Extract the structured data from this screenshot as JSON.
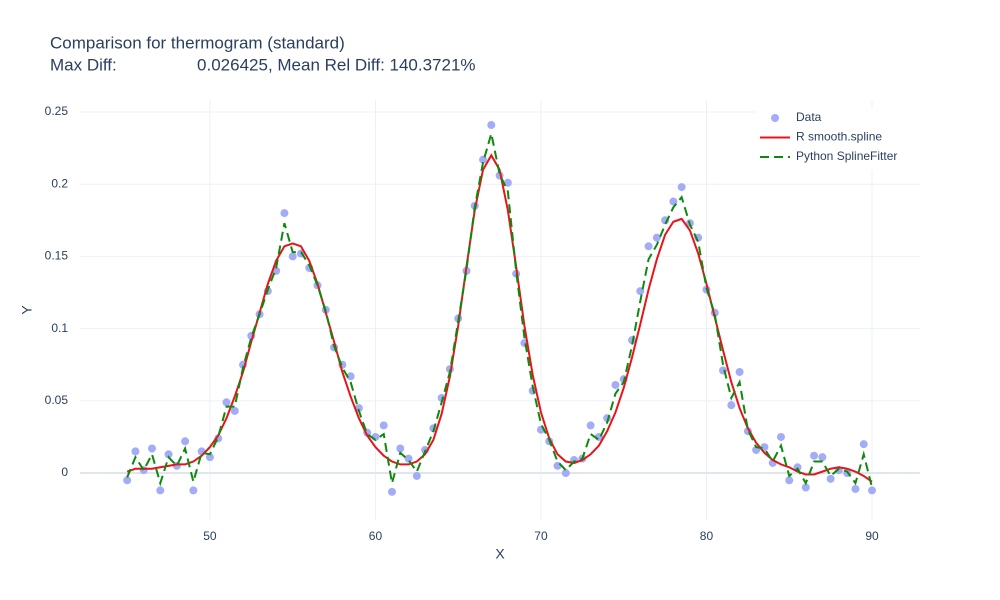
{
  "chart_data": {
    "type": "scatter",
    "title": "Comparison for thermogram (standard)",
    "subtitle": "Max Diff:                 0.026425, Mean Rel Diff: 140.3721%",
    "x_label": "X",
    "y_label": "Y",
    "x": [
      45,
      45.5,
      46,
      46.5,
      47,
      47.5,
      48,
      48.5,
      49,
      49.5,
      50,
      50.5,
      51,
      51.5,
      52,
      52.5,
      53,
      53.5,
      54,
      54.5,
      55,
      55.5,
      56,
      56.5,
      57,
      57.5,
      58,
      58.5,
      59,
      59.5,
      60,
      60.5,
      61,
      61.5,
      62,
      62.5,
      63,
      63.5,
      64,
      64.5,
      65,
      65.5,
      66,
      66.5,
      67,
      67.5,
      68,
      68.5,
      69,
      69.5,
      70,
      70.5,
      71,
      71.5,
      72,
      72.5,
      73,
      73.5,
      74,
      74.5,
      75,
      75.5,
      76,
      76.5,
      77,
      77.5,
      78,
      78.5,
      79,
      79.5,
      80,
      80.5,
      81,
      81.5,
      82,
      82.5,
      83,
      83.5,
      84,
      84.5,
      85,
      85.5,
      86,
      86.5,
      87,
      87.5,
      88,
      88.5,
      89,
      89.5,
      90
    ],
    "series": [
      {
        "name": "Data",
        "color": "#a3acf7",
        "mode": "markers",
        "values": [
          -0.005,
          0.015,
          0.002,
          0.017,
          -0.012,
          0.013,
          0.005,
          0.022,
          -0.012,
          0.015,
          0.011,
          0.024,
          0.049,
          0.043,
          0.075,
          0.095,
          0.11,
          0.126,
          0.14,
          0.18,
          0.15,
          0.152,
          0.142,
          0.13,
          0.113,
          0.087,
          0.075,
          0.067,
          0.045,
          0.028,
          0.025,
          0.033,
          -0.013,
          0.017,
          0.01,
          -0.002,
          0.016,
          0.031,
          0.052,
          0.072,
          0.107,
          0.14,
          0.185,
          0.217,
          0.241,
          0.206,
          0.201,
          0.138,
          0.09,
          0.057,
          0.03,
          0.022,
          0.005,
          0.0,
          0.009,
          0.01,
          0.033,
          0.025,
          0.038,
          0.061,
          0.065,
          0.092,
          0.126,
          0.157,
          0.163,
          0.175,
          0.188,
          0.198,
          0.173,
          0.163,
          0.127,
          0.111,
          0.071,
          0.047,
          0.07,
          0.029,
          0.016,
          0.018,
          0.007,
          0.025,
          -0.005,
          0.004,
          -0.01,
          0.012,
          0.011,
          -0.004,
          0.002,
          0.0,
          -0.011,
          0.02,
          -0.012
        ]
      },
      {
        "name": "R smooth.spline",
        "color": "#e8141a",
        "mode": "lines",
        "values": [
          0.001,
          0.003,
          0.003,
          0.003,
          0.004,
          0.005,
          0.006,
          0.006,
          0.008,
          0.012,
          0.018,
          0.026,
          0.038,
          0.053,
          0.07,
          0.091,
          0.111,
          0.131,
          0.147,
          0.157,
          0.159,
          0.157,
          0.147,
          0.131,
          0.111,
          0.091,
          0.07,
          0.053,
          0.038,
          0.026,
          0.018,
          0.012,
          0.008,
          0.006,
          0.006,
          0.008,
          0.013,
          0.023,
          0.041,
          0.067,
          0.102,
          0.143,
          0.182,
          0.21,
          0.22,
          0.21,
          0.182,
          0.143,
          0.102,
          0.068,
          0.042,
          0.024,
          0.013,
          0.008,
          0.007,
          0.009,
          0.013,
          0.019,
          0.029,
          0.042,
          0.059,
          0.08,
          0.103,
          0.127,
          0.148,
          0.165,
          0.174,
          0.176,
          0.168,
          0.152,
          0.131,
          0.108,
          0.085,
          0.063,
          0.045,
          0.031,
          0.021,
          0.014,
          0.009,
          0.006,
          0.004,
          0.001,
          -0.001,
          -0.001,
          0.001,
          0.003,
          0.004,
          0.003,
          0.001,
          -0.002,
          -0.006
        ]
      },
      {
        "name": "Python SplineFitter",
        "color": "#0d8a0d",
        "mode": "lines",
        "dash": true,
        "values": [
          -0.003,
          0.011,
          0.002,
          0.013,
          -0.007,
          0.011,
          0.005,
          0.017,
          -0.006,
          0.014,
          0.013,
          0.025,
          0.046,
          0.046,
          0.073,
          0.094,
          0.11,
          0.127,
          0.142,
          0.173,
          0.153,
          0.153,
          0.144,
          0.13,
          0.112,
          0.088,
          0.073,
          0.063,
          0.043,
          0.027,
          0.023,
          0.027,
          -0.007,
          0.014,
          0.009,
          0.001,
          0.015,
          0.029,
          0.049,
          0.07,
          0.105,
          0.141,
          0.184,
          0.215,
          0.235,
          0.207,
          0.195,
          0.14,
          0.094,
          0.06,
          0.034,
          0.023,
          0.008,
          0.002,
          0.008,
          0.01,
          0.027,
          0.023,
          0.035,
          0.055,
          0.063,
          0.088,
          0.119,
          0.148,
          0.158,
          0.172,
          0.184,
          0.191,
          0.172,
          0.16,
          0.128,
          0.11,
          0.075,
          0.052,
          0.063,
          0.03,
          0.018,
          0.017,
          0.008,
          0.019,
          -0.002,
          0.003,
          -0.007,
          0.008,
          0.008,
          -0.002,
          0.003,
          0.001,
          -0.007,
          0.013,
          -0.01
        ]
      }
    ],
    "xlim": [
      42.15,
      92.9
    ],
    "xticks": [
      50,
      60,
      70,
      80,
      90
    ],
    "ylim": [
      -0.0325,
      0.2583
    ],
    "yticks": [
      0,
      0.05,
      0.1,
      0.15,
      0.2,
      0.25
    ],
    "grid": true,
    "legend": "top-right"
  }
}
